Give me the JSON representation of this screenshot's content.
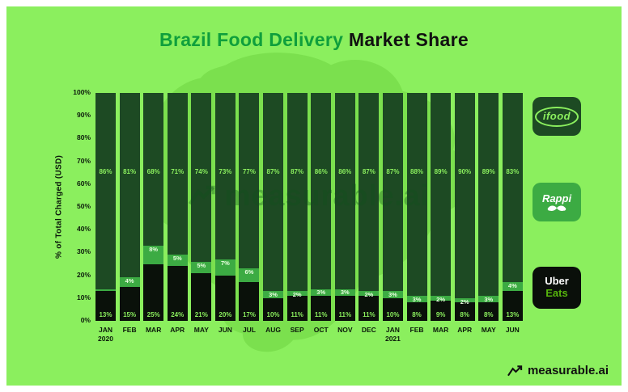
{
  "title": {
    "green": "Brazil Food Delivery",
    "black": "Market Share"
  },
  "y_axis_label": "% of Total Charged (USD)",
  "watermark": "measurable.ai",
  "footer_brand": "measurable.ai",
  "legend": {
    "ifood": "ifood",
    "rappi": "Rappi",
    "uber_line1": "Uber",
    "uber_line2": "Eats"
  },
  "icons": {
    "brand_icon": "line-chart-arrow",
    "rappi_icon": "mustache"
  },
  "colors": {
    "background": "#8bef5e",
    "map_silhouette": "#7be04e",
    "ifood_bar": "#1d4a23",
    "rappi_bar": "#3cab43",
    "uber_bar": "#0a110a",
    "bar_label_light": "#8bef5e",
    "title_green": "#0f9f3c",
    "text_black": "#111111"
  },
  "chart_data": {
    "type": "bar",
    "stacked": true,
    "title": "Brazil Food Delivery Market Share",
    "ylabel": "% of Total Charged (USD)",
    "ylim": [
      0,
      100
    ],
    "grid": false,
    "legend_position": "right",
    "y_ticks": [
      "100%",
      "90%",
      "80%",
      "70%",
      "60%",
      "50%",
      "40%",
      "30%",
      "20%",
      "10%",
      "0%"
    ],
    "categories": [
      "JAN",
      "FEB",
      "MAR",
      "APR",
      "MAY",
      "JUN",
      "JUL",
      "AUG",
      "SEP",
      "OCT",
      "NOV",
      "DEC",
      "JAN",
      "FEB",
      "MAR",
      "APR",
      "MAY",
      "JUN"
    ],
    "category_years": {
      "0": "2020",
      "12": "2021"
    },
    "series": [
      {
        "name": "iFood",
        "values": [
          86,
          81,
          68,
          71,
          74,
          73,
          77,
          87,
          87,
          86,
          86,
          87,
          87,
          88,
          89,
          90,
          89,
          83
        ]
      },
      {
        "name": "Rappi",
        "values": [
          1,
          4,
          8,
          5,
          5,
          7,
          6,
          3,
          2,
          3,
          3,
          2,
          3,
          3,
          2,
          2,
          3,
          4
        ]
      },
      {
        "name": "Uber Eats",
        "values": [
          13,
          15,
          25,
          24,
          21,
          20,
          17,
          10,
          11,
          11,
          11,
          11,
          10,
          8,
          9,
          8,
          8,
          13
        ]
      }
    ]
  }
}
